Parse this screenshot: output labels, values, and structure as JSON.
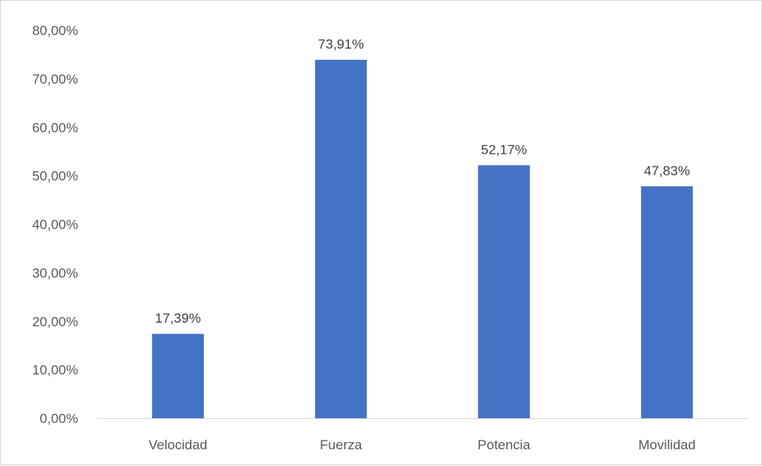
{
  "chart_data": {
    "type": "bar",
    "title": "",
    "xlabel": "",
    "ylabel": "",
    "categories": [
      "Velocidad",
      "Fuerza",
      "Potencia",
      "Movilidad"
    ],
    "values": [
      17.39,
      73.91,
      52.17,
      47.83
    ],
    "data_labels": [
      "17,39%",
      "73,91%",
      "52,17%",
      "47,83%"
    ],
    "ylim": [
      0,
      80
    ],
    "yticks": [
      0,
      10,
      20,
      30,
      40,
      50,
      60,
      70,
      80
    ],
    "ytick_labels": [
      "0,00%",
      "10,00%",
      "20,00%",
      "30,00%",
      "40,00%",
      "50,00%",
      "60,00%",
      "70,00%",
      "80,00%"
    ],
    "grid": false,
    "legend": "none",
    "bar_color": "#4472c4"
  }
}
